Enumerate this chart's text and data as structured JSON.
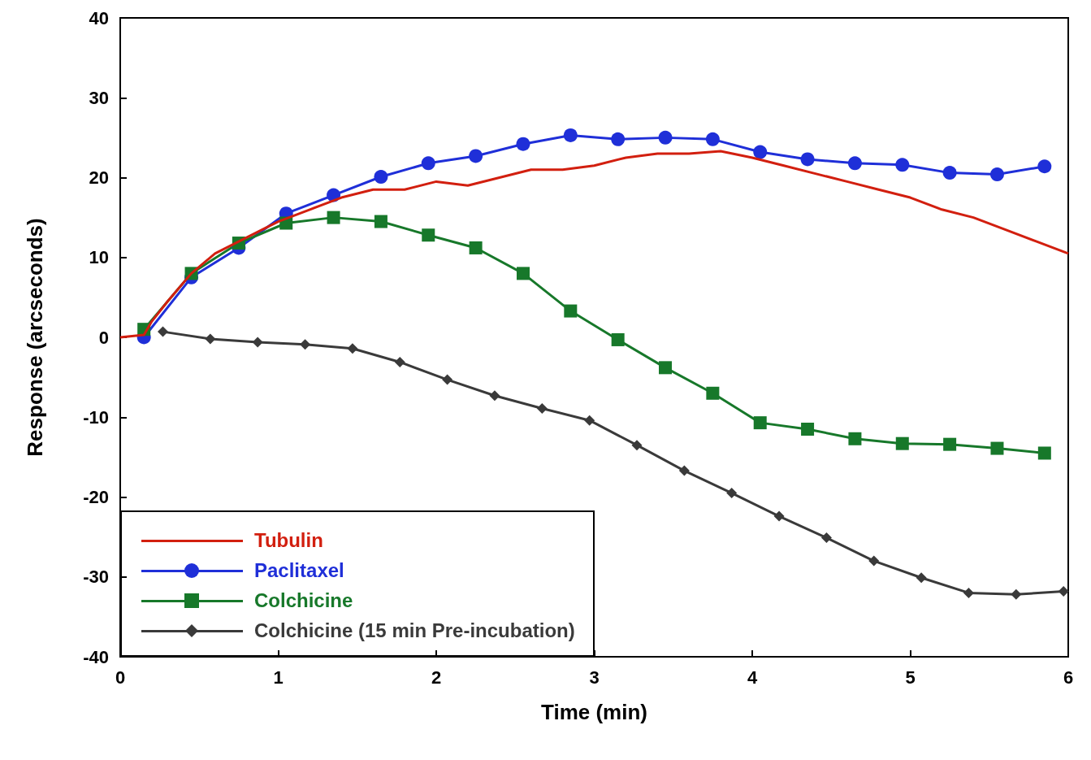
{
  "chart_data": {
    "type": "line",
    "xlabel": "Time (min)",
    "ylabel": "Response (arcseconds)",
    "xlim": [
      0,
      6
    ],
    "xticks": [
      0,
      1,
      2,
      3,
      4,
      5,
      6
    ],
    "ylim": [
      -40,
      40
    ],
    "yticks": [
      -40,
      -30,
      -20,
      -10,
      0,
      10,
      20,
      30,
      40
    ],
    "grid": false,
    "legend": "bottom left",
    "line_style": "solid",
    "series": [
      {
        "name": "Tubulin",
        "color": "#d21f0f",
        "marker": "none",
        "x": [
          0,
          0.15,
          0.2,
          0.3,
          0.45,
          0.6,
          0.75,
          0.9,
          1.0,
          1.2,
          1.4,
          1.6,
          1.8,
          2.0,
          2.2,
          2.4,
          2.6,
          2.8,
          3.0,
          3.2,
          3.4,
          3.6,
          3.8,
          4.0,
          4.2,
          4.4,
          4.6,
          4.8,
          5.0,
          5.2,
          5.4,
          5.6,
          5.8,
          6.0
        ],
        "values": [
          0,
          0.3,
          2,
          4.5,
          8,
          10.5,
          12,
          13.5,
          14.5,
          16,
          17.5,
          18.5,
          18.5,
          19.5,
          19,
          20,
          21,
          21,
          21.5,
          22.5,
          23,
          23,
          23.3,
          22.5,
          21.5,
          20.5,
          19.5,
          18.5,
          17.5,
          16,
          15,
          13.5,
          12,
          10.5
        ]
      },
      {
        "name": "Paclitaxel",
        "color": "#1f2fd8",
        "marker": "circle",
        "x": [
          0.15,
          0.45,
          0.75,
          1.05,
          1.35,
          1.65,
          1.95,
          2.25,
          2.55,
          2.85,
          3.15,
          3.45,
          3.75,
          4.05,
          4.35,
          4.65,
          4.95,
          5.25,
          5.55,
          5.85
        ],
        "values": [
          0,
          7.5,
          11.2,
          15.5,
          17.8,
          20.1,
          21.8,
          22.7,
          24.2,
          25.3,
          24.8,
          25,
          24.8,
          23.2,
          22.3,
          21.8,
          21.6,
          20.6,
          20.4,
          21.4
        ]
      },
      {
        "name": "Colchicine",
        "color": "#17782a",
        "marker": "square",
        "x": [
          0.15,
          0.45,
          0.75,
          1.05,
          1.35,
          1.65,
          1.95,
          2.25,
          2.55,
          2.85,
          3.15,
          3.45,
          3.75,
          4.05,
          4.35,
          4.65,
          4.95,
          5.25,
          5.55,
          5.85
        ],
        "values": [
          1,
          8,
          11.8,
          14.3,
          15,
          14.5,
          12.8,
          11.2,
          8,
          3.3,
          -0.3,
          -3.8,
          -7,
          -10.7,
          -11.5,
          -12.7,
          -13.3,
          -13.4,
          -13.9,
          -14.5
        ]
      },
      {
        "name": "Colchicine (15 min Pre-incubation)",
        "color": "#3a3a3a",
        "marker": "diamond",
        "x": [
          0.27,
          0.57,
          0.87,
          1.17,
          1.47,
          1.77,
          2.07,
          2.37,
          2.67,
          2.97,
          3.27,
          3.57,
          3.87,
          4.17,
          4.47,
          4.77,
          5.07,
          5.37,
          5.67,
          5.97
        ],
        "values": [
          0.7,
          -0.2,
          -0.6,
          -0.9,
          -1.4,
          -3.1,
          -5.3,
          -7.3,
          -8.9,
          -10.4,
          -13.5,
          -16.7,
          -19.5,
          -22.4,
          -25.1,
          -28,
          -30.1,
          -32,
          -32.2,
          -31.8
        ]
      }
    ]
  }
}
